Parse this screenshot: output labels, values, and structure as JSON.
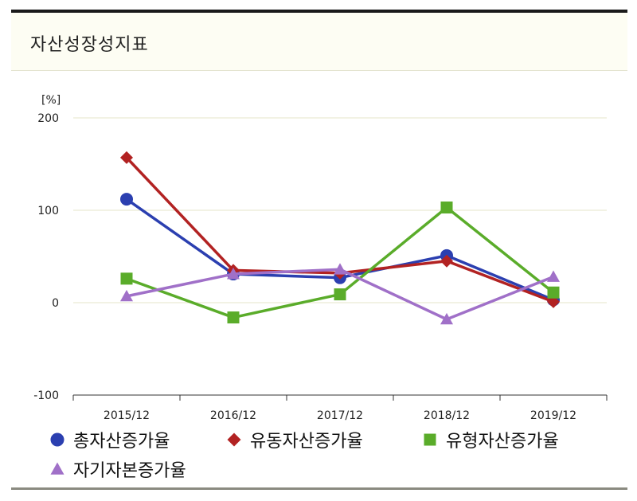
{
  "panel": {
    "title": "자산성장성지표"
  },
  "chart_data": {
    "type": "line",
    "unit": "[%]",
    "categories": [
      "2015/12",
      "2016/12",
      "2017/12",
      "2018/12",
      "2019/12"
    ],
    "y_ticks": [
      "200",
      "100",
      "0",
      "-100"
    ],
    "ylim": [
      -100,
      200
    ],
    "grid": true,
    "legend_position": "bottom",
    "series": [
      {
        "name": "총자산증가율",
        "color": "#2b3fb0",
        "marker": "circle",
        "values": [
          112,
          31,
          27,
          51,
          3
        ]
      },
      {
        "name": "유동자산증가율",
        "color": "#b22222",
        "marker": "diamond",
        "values": [
          157,
          35,
          32,
          45,
          1
        ]
      },
      {
        "name": "유형자산증가율",
        "color": "#5aac2a",
        "marker": "square",
        "values": [
          26,
          -16,
          9,
          103,
          11
        ]
      },
      {
        "name": "자기자본증가율",
        "color": "#a070c8",
        "marker": "triangle",
        "values": [
          7,
          31,
          36,
          -18,
          28
        ]
      }
    ]
  }
}
